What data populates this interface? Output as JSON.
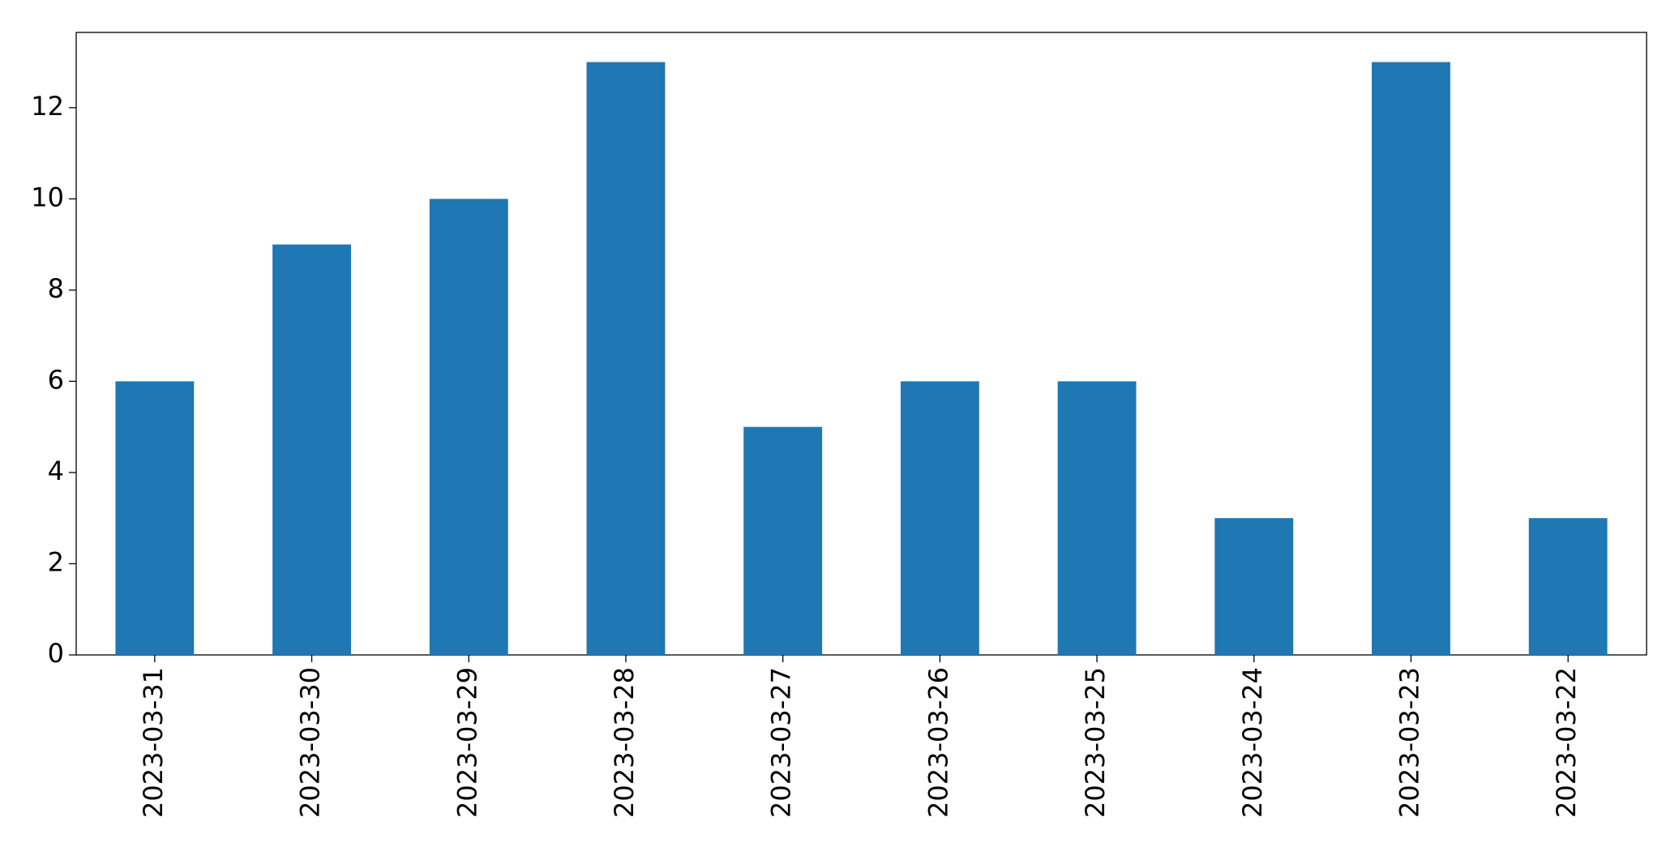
{
  "chart_data": {
    "type": "bar",
    "categories": [
      "2023-03-31",
      "2023-03-30",
      "2023-03-29",
      "2023-03-28",
      "2023-03-27",
      "2023-03-26",
      "2023-03-25",
      "2023-03-24",
      "2023-03-23",
      "2023-03-22"
    ],
    "values": [
      6,
      9,
      10,
      13,
      5,
      6,
      6,
      3,
      13,
      3
    ],
    "color": "#1f77b4",
    "ylim": [
      0,
      13.65
    ],
    "yticks": [
      0,
      2,
      4,
      6,
      8,
      10,
      12
    ],
    "grid": false
  }
}
